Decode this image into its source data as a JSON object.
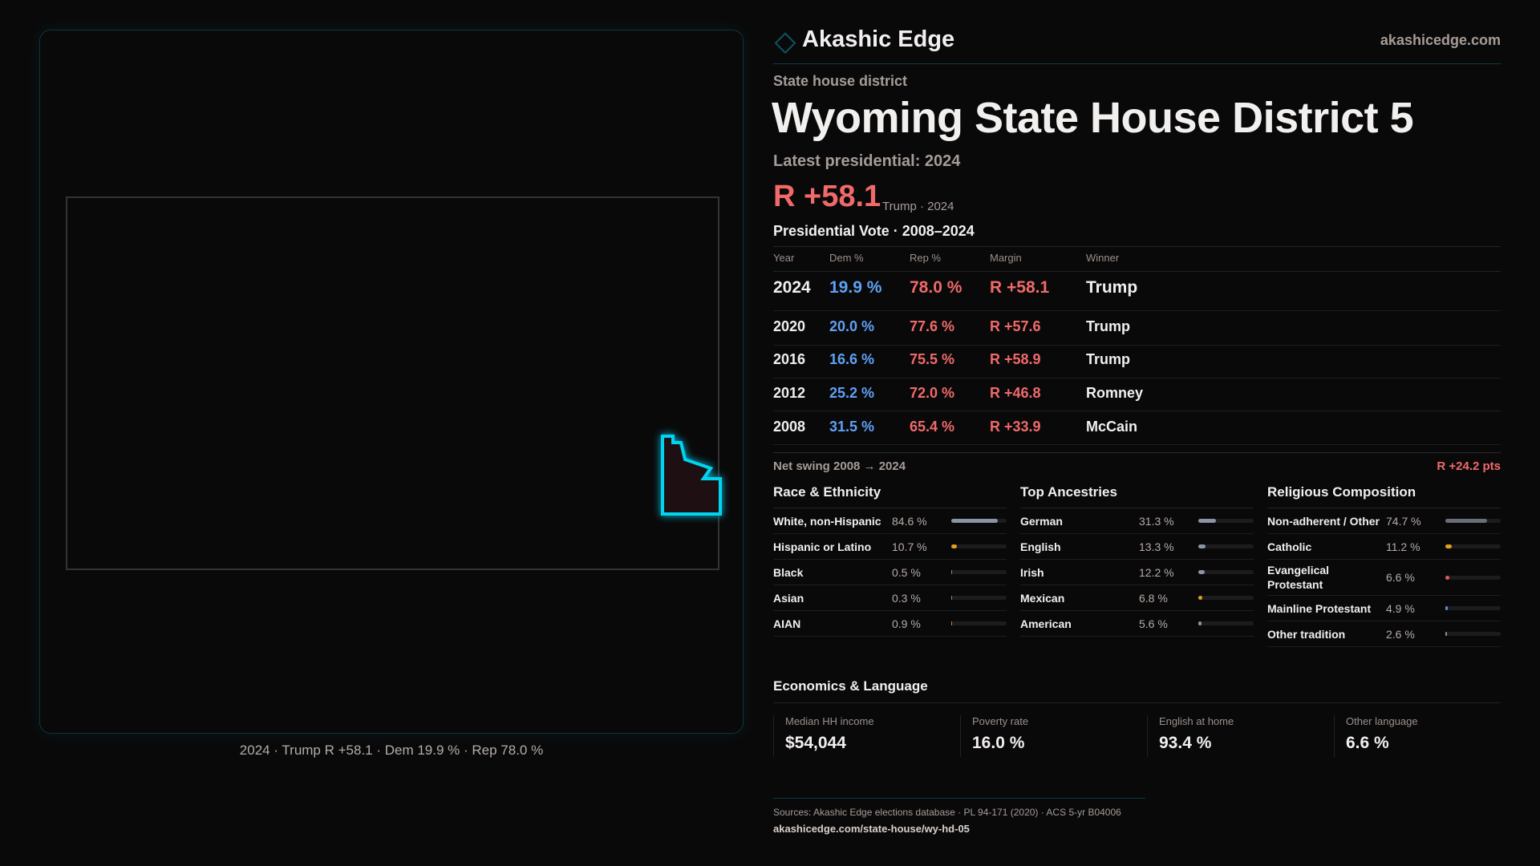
{
  "brand": {
    "name": "Akashic Edge",
    "site": "akashicedge.com",
    "accent": "#00d4f0"
  },
  "map": {
    "caption": "2024 · Trump R +58.1 · Dem 19.9 % · Rep 78.0 %"
  },
  "header": {
    "kind": "State house district",
    "title": "Wyoming State House District 5",
    "latest": "Latest presidential: 2024",
    "margin": "R +58.1",
    "margin_sub": "Trump · 2024"
  },
  "votes": {
    "title": "Presidential Vote · 2008–2024",
    "columns": [
      "Year",
      "Dem %",
      "Rep %",
      "Margin",
      "Winner"
    ],
    "rows": [
      [
        "2024",
        "19.9 %",
        "78.0 %",
        "R +58.1",
        "Trump"
      ],
      [
        "2020",
        "20.0 %",
        "77.6 %",
        "R +57.6",
        "Trump"
      ],
      [
        "2016",
        "16.6 %",
        "75.5 %",
        "R +58.9",
        "Trump"
      ],
      [
        "2012",
        "25.2 %",
        "72.0 %",
        "R +46.8",
        "Romney"
      ],
      [
        "2008",
        "31.5 %",
        "65.4 %",
        "R +33.9",
        "McCain"
      ]
    ],
    "swing_label": "Net swing 2008 → 2024",
    "swing_value": "R +24.2 pts"
  },
  "race": {
    "title": "Race & Ethnicity",
    "items": [
      {
        "label": "White, non-Hispanic",
        "value": "84.6 %",
        "pct": 84.6,
        "color": "#8a94a6"
      },
      {
        "label": "Hispanic or Latino",
        "value": "10.7 %",
        "pct": 10.7,
        "color": "#e0a020"
      },
      {
        "label": "Black",
        "value": "0.5 %",
        "pct": 0.5,
        "color": "#888"
      },
      {
        "label": "Asian",
        "value": "0.3 %",
        "pct": 0.3,
        "color": "#888"
      },
      {
        "label": "AIAN",
        "value": "0.9 %",
        "pct": 0.9,
        "color": "#e08020"
      }
    ]
  },
  "ancestry": {
    "title": "Top Ancestries",
    "items": [
      {
        "label": "German",
        "value": "31.3 %",
        "pct": 31.3,
        "color": "#8a94a6"
      },
      {
        "label": "English",
        "value": "13.3 %",
        "pct": 13.3,
        "color": "#8a94a6"
      },
      {
        "label": "Irish",
        "value": "12.2 %",
        "pct": 12.2,
        "color": "#8a94a6"
      },
      {
        "label": "Mexican",
        "value": "6.8 %",
        "pct": 6.8,
        "color": "#e0a020"
      },
      {
        "label": "American",
        "value": "5.6 %",
        "pct": 5.6,
        "color": "#8a94a6"
      }
    ]
  },
  "religion": {
    "title": "Religious Composition",
    "items": [
      {
        "label": "Non-adherent / Other",
        "value": "74.7 %",
        "pct": 74.7,
        "color": "#6a6e78"
      },
      {
        "label": "Catholic",
        "value": "11.2 %",
        "pct": 11.2,
        "color": "#e0a020"
      },
      {
        "label": "Evangelical Protestant",
        "value": "6.6 %",
        "pct": 6.6,
        "color": "#e05a5a"
      },
      {
        "label": "Mainline Protestant",
        "value": "4.9 %",
        "pct": 4.9,
        "color": "#5a8ae0"
      },
      {
        "label": "Other tradition",
        "value": "2.6 %",
        "pct": 2.6,
        "color": "#8a94a6"
      }
    ]
  },
  "econ": {
    "title": "Economics & Language",
    "cards": [
      {
        "label": "Median HH income",
        "value": "$54,044"
      },
      {
        "label": "Poverty rate",
        "value": "16.0 %"
      },
      {
        "label": "English at home",
        "value": "93.4 %"
      },
      {
        "label": "Other language",
        "value": "6.6 %"
      }
    ]
  },
  "footer": {
    "sources": "Sources: Akashic Edge elections database · PL 94-171 (2020) · ACS 5-yr B04006",
    "url": "akashicedge.com/state-house/wy-hd-05"
  }
}
